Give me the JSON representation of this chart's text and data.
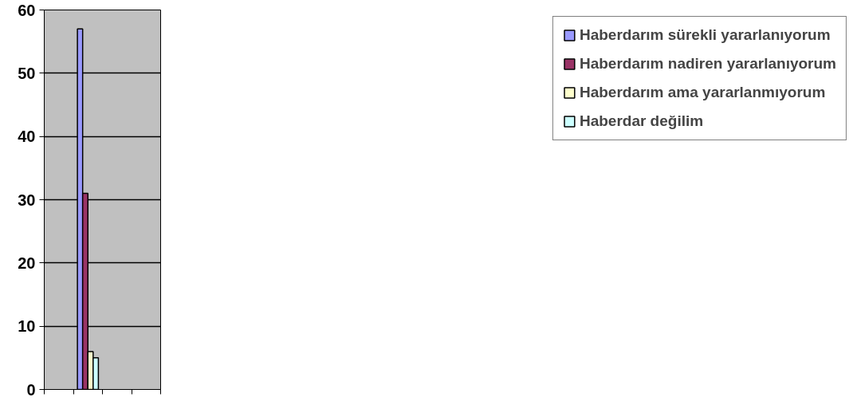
{
  "chart_data": {
    "type": "bar",
    "categories": [
      null,
      null,
      null,
      null
    ],
    "series": [
      {
        "name": "Haberdarım sürekli yararlanıyorum",
        "color": "#9999ff",
        "values": [
          null,
          57,
          null,
          null
        ]
      },
      {
        "name": "Haberdarım nadiren yararlanıyorum",
        "color": "#993366",
        "values": [
          null,
          31,
          null,
          null
        ]
      },
      {
        "name": "Haberdarım ama yararlanmıyorum",
        "color": "#ffffcc",
        "values": [
          null,
          6,
          null,
          null
        ]
      },
      {
        "name": "Haberdar değilim",
        "color": "#ccffff",
        "values": [
          null,
          5,
          null,
          null
        ]
      }
    ],
    "ylim": [
      0,
      60
    ],
    "yticks": [
      0,
      10,
      20,
      30,
      40,
      50,
      60
    ],
    "grid": "y",
    "legend": "right"
  }
}
